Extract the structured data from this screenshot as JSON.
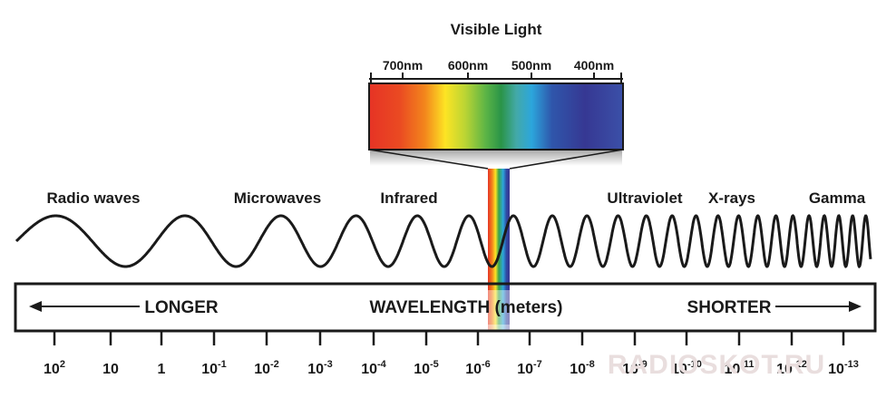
{
  "visible_light": {
    "title": "Visible Light",
    "scale_labels": [
      "700nm",
      "600nm",
      "500nm",
      "400nm"
    ]
  },
  "bands": [
    "Radio waves",
    "Microwaves",
    "Infrared",
    "Ultraviolet",
    "X-rays",
    "Gamma"
  ],
  "axis": {
    "left_label": "LONGER",
    "center_label": "WAVELENGTH (meters)",
    "right_label": "SHORTER"
  },
  "ticks": [
    {
      "base": "10",
      "exp": "2"
    },
    {
      "base": "10",
      "exp": ""
    },
    {
      "base": "1",
      "exp": ""
    },
    {
      "base": "10",
      "exp": "-1"
    },
    {
      "base": "10",
      "exp": "-2"
    },
    {
      "base": "10",
      "exp": "-3"
    },
    {
      "base": "10",
      "exp": "-4"
    },
    {
      "base": "10",
      "exp": "-5"
    },
    {
      "base": "10",
      "exp": "-6"
    },
    {
      "base": "10",
      "exp": "-7"
    },
    {
      "base": "10",
      "exp": "-8"
    },
    {
      "base": "10",
      "exp": "-9"
    },
    {
      "base": "10",
      "exp": "-10"
    },
    {
      "base": "10",
      "exp": "-11"
    },
    {
      "base": "10",
      "exp": "-12"
    },
    {
      "base": "10",
      "exp": "-13"
    }
  ],
  "watermark": "RADIOSKOT.RU",
  "colors": {
    "ink": "#1a1a1a",
    "spectrum": [
      "#e63325",
      "#f07a1d",
      "#fde424",
      "#8fc53c",
      "#2f9a4a",
      "#2aa7d6",
      "#2e4aa3",
      "#3b3590",
      "#3a4fa6"
    ]
  }
}
